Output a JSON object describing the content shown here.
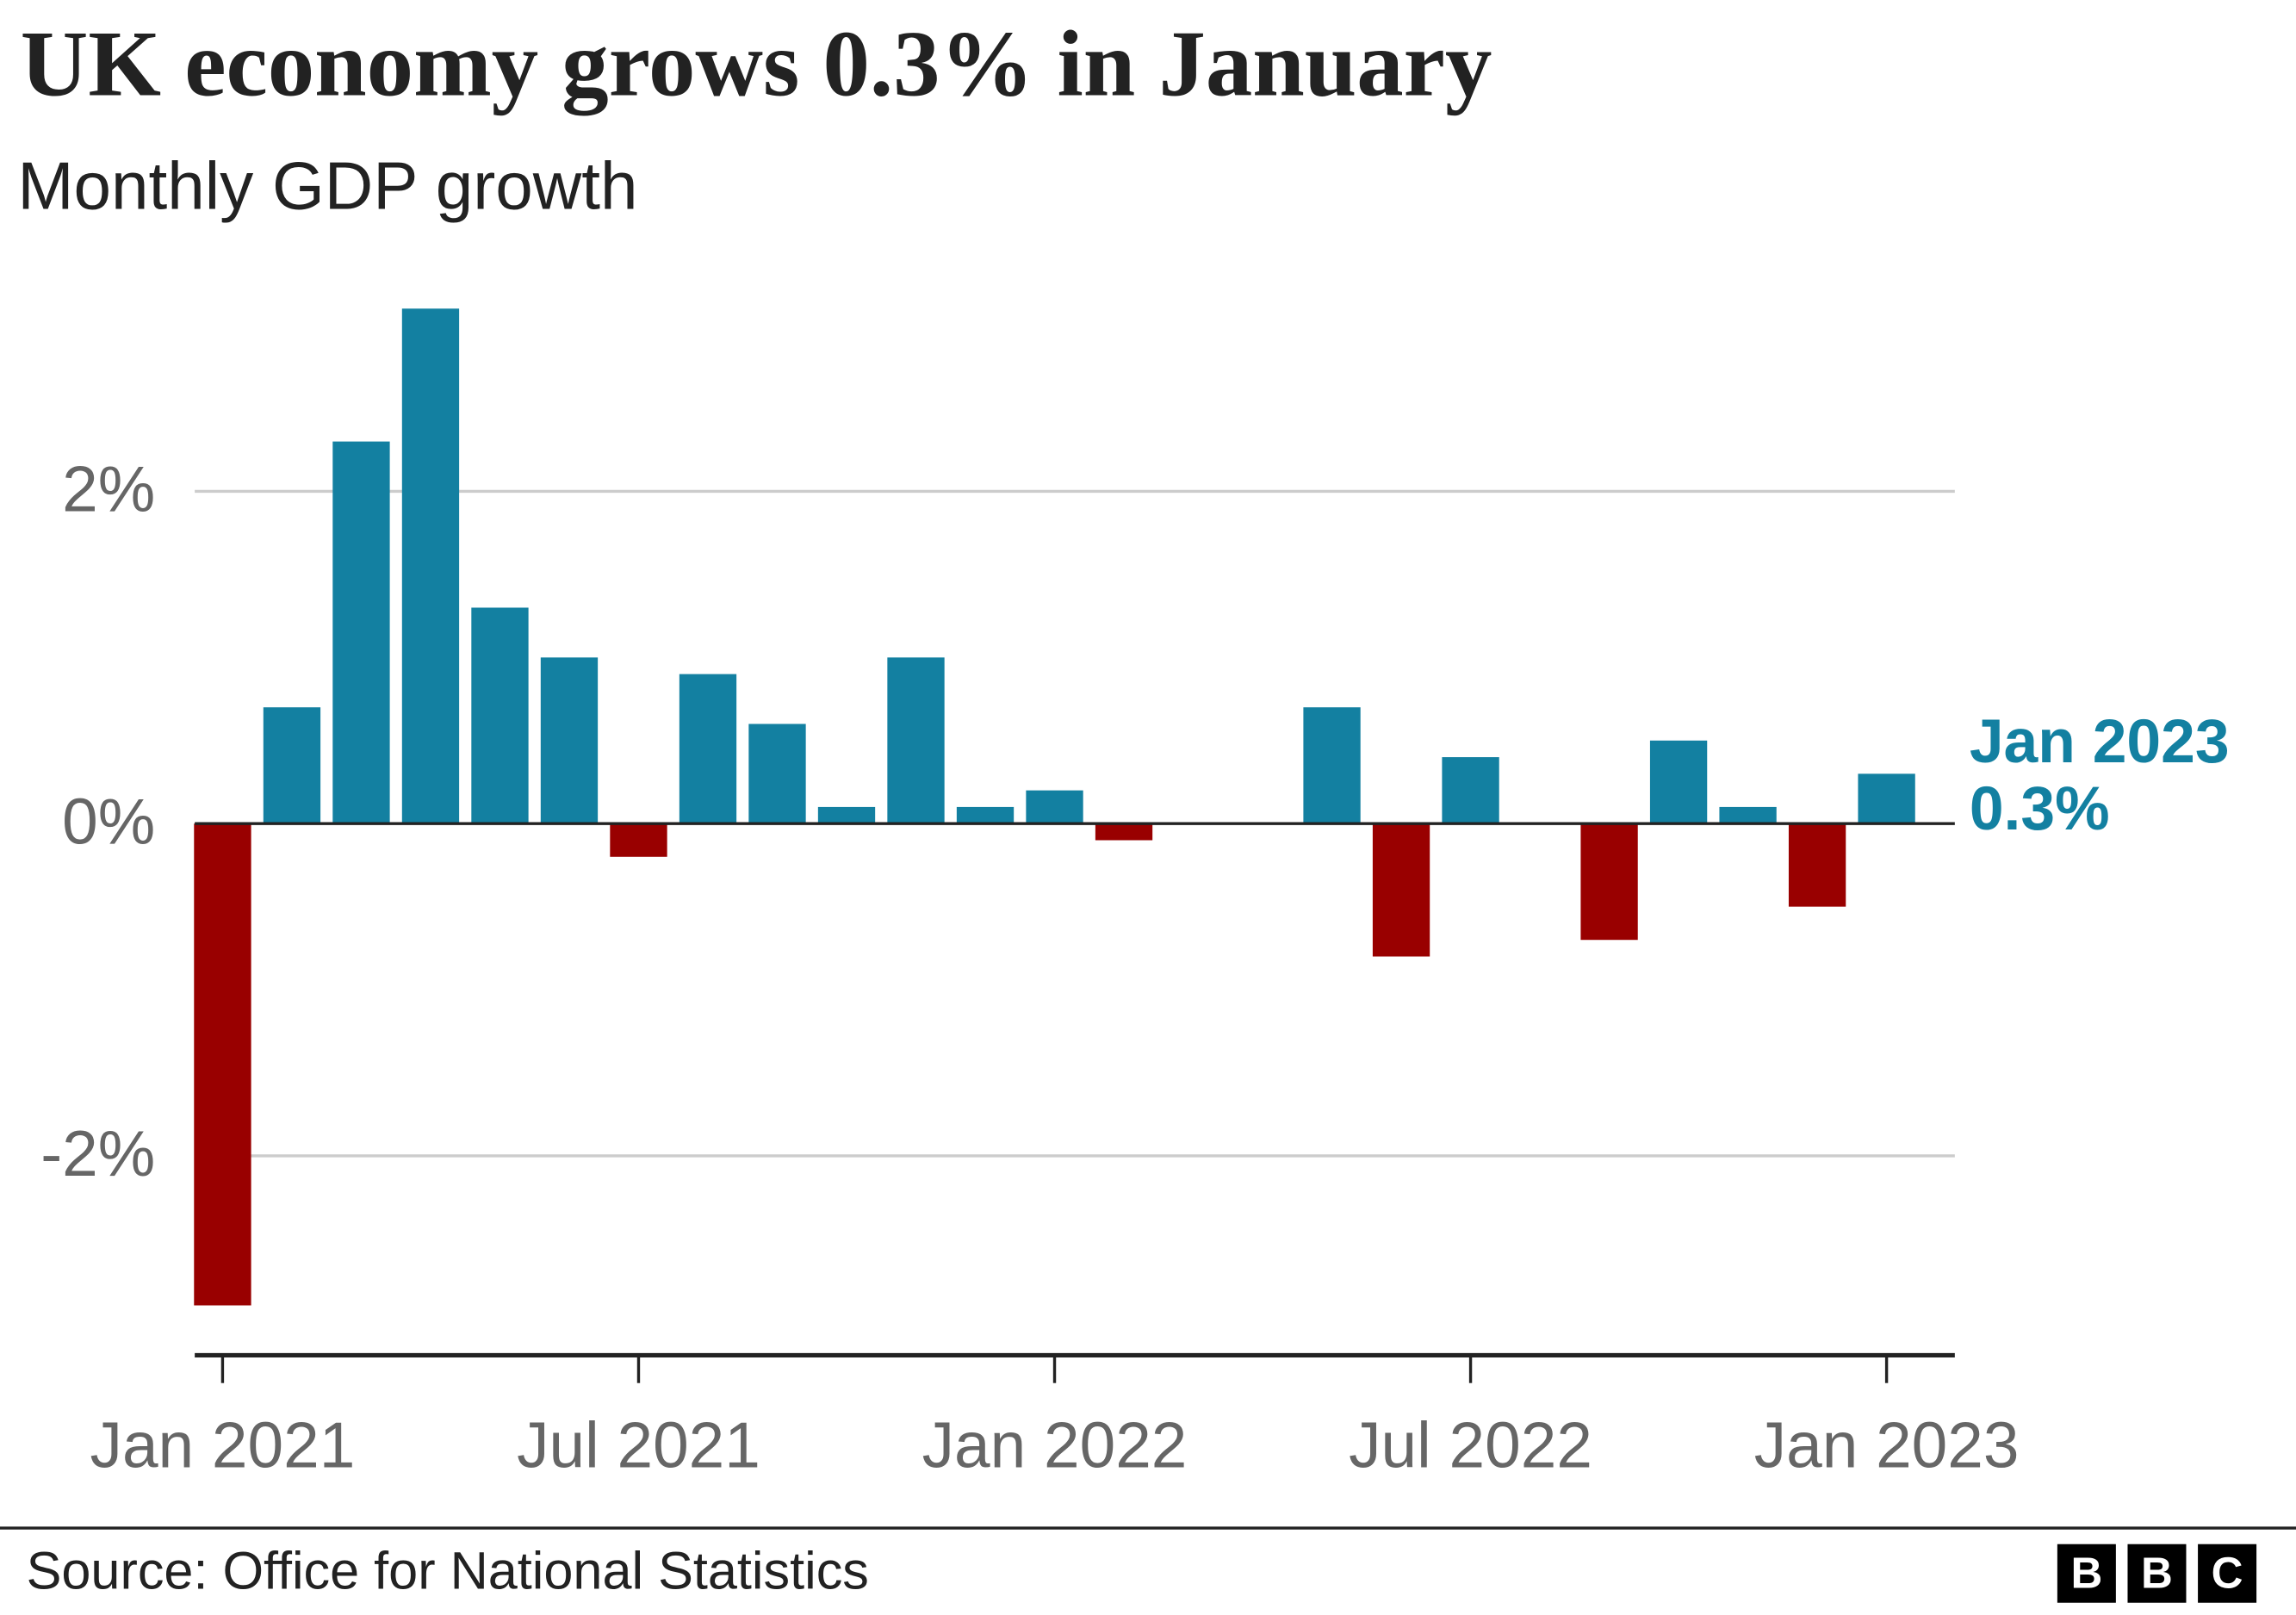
{
  "chart_data": {
    "type": "bar",
    "title": "UK economy grows 0.3% in January",
    "subtitle": "Monthly GDP growth",
    "categories": [
      "Jan 2021",
      null,
      null,
      null,
      null,
      null,
      "Jul 2021",
      null,
      null,
      null,
      null,
      null,
      "Jan 2022",
      null,
      null,
      null,
      null,
      null,
      "Jul 2022",
      null,
      null,
      null,
      null,
      null,
      "Jan 2023"
    ],
    "values": [
      -2.9,
      0.7,
      2.3,
      3.1,
      1.3,
      1.0,
      -0.2,
      0.9,
      0.6,
      0.1,
      1.0,
      0.1,
      0.2,
      -0.1,
      0,
      0,
      0.7,
      -0.8,
      0.4,
      0,
      -0.7,
      0.5,
      0.1,
      -0.5,
      0.3
    ],
    "value_labels": [
      null,
      null,
      null,
      null,
      null,
      null,
      null,
      null,
      null,
      null,
      null,
      null,
      null,
      null,
      null,
      null,
      null,
      null,
      null,
      null,
      null,
      null,
      null,
      null,
      "0.3%"
    ],
    "positive_color": "#1380a1",
    "negative_color": "#990000",
    "ylim": [
      -3.2,
      3.2
    ],
    "yticks": [
      {
        "value": -2,
        "label": "-2%"
      },
      {
        "value": 0,
        "label": "0%"
      },
      {
        "value": 2,
        "label": "2%"
      }
    ],
    "grid": true,
    "source": "Source: Office for National Statistics",
    "logo": [
      "B",
      "B",
      "C"
    ]
  }
}
